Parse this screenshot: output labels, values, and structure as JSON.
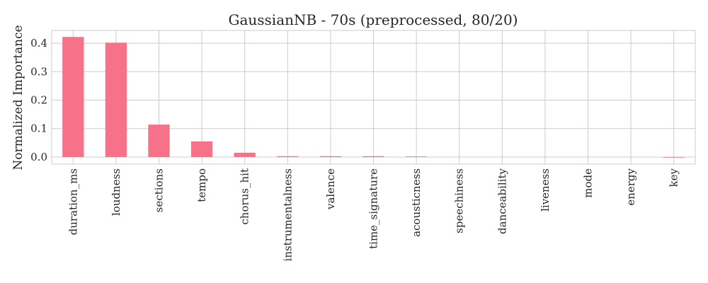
{
  "chart_data": {
    "type": "bar",
    "title": "GaussianNB - 70s (preprocessed, 80/20)",
    "xlabel": "",
    "ylabel": "Normalized Importance",
    "categories": [
      "duration_ms",
      "loudness",
      "sections",
      "tempo",
      "chorus_hit",
      "instrumentalness",
      "valence",
      "time_signature",
      "acousticness",
      "speechiness",
      "danceability",
      "liveness",
      "mode",
      "energy",
      "key"
    ],
    "values": [
      0.422,
      0.402,
      0.114,
      0.055,
      0.015,
      0.003,
      0.003,
      0.003,
      0.002,
      0.0,
      0.0,
      0.0,
      0.0,
      0.0,
      -0.002
    ],
    "yticks": [
      "0.0",
      "0.1",
      "0.2",
      "0.3",
      "0.4"
    ],
    "ylim": [
      -0.025,
      0.445
    ],
    "grid": true,
    "bar_color": "#f77189"
  }
}
